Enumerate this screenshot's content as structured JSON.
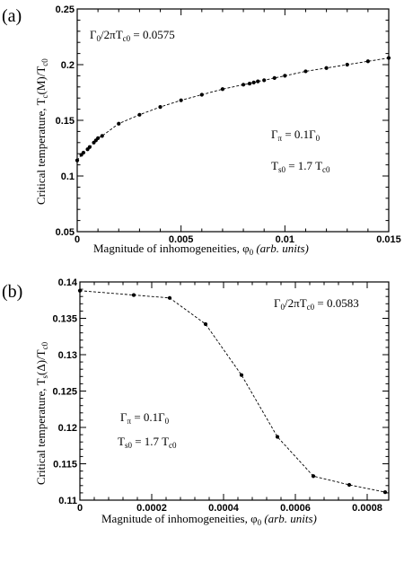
{
  "chart_data": [
    {
      "panel_label": "(a)",
      "type": "line",
      "xlabel": "Magnitude of inhomogeneities, φ",
      "xlabel_sub": "0",
      "xlabel_italic": "(arb. units)",
      "ylabel": "Critical temperature, T",
      "ylabel_sub1": "c",
      "ylabel_mid": "(M)/T",
      "ylabel_sub2": "c0",
      "xlim": [
        0,
        0.015
      ],
      "ylim": [
        0.05,
        0.25
      ],
      "xticks": [
        0,
        0.005,
        0.01,
        0.015
      ],
      "xtick_labels": [
        "0",
        "0.005",
        "0.01",
        "0.015"
      ],
      "yticks": [
        0.05,
        0.1,
        0.15,
        0.2,
        0.25
      ],
      "ytick_labels": [
        "0.05",
        "0.1",
        "0.15",
        "0.2",
        "0.25"
      ],
      "annotations": {
        "gamma_ratio": {
          "main": "Γ",
          "sub": "0",
          "rest": "/2πT",
          "sub2": "c0",
          "value": " = 0.0575"
        },
        "gamma_pi": {
          "main": "Γ",
          "sub": "π",
          "rest": " = 0.1Γ",
          "sub2": "0"
        },
        "ts0": {
          "main": "T",
          "sub": "s0",
          "rest": " = 1.7 T",
          "sub2": "c0"
        }
      },
      "x": [
        0.0,
        0.0002,
        0.0003,
        0.0005,
        0.0006,
        0.0008,
        0.0009,
        0.001,
        0.0012,
        0.002,
        0.003,
        0.004,
        0.005,
        0.006,
        0.007,
        0.008,
        0.0083,
        0.0085,
        0.0087,
        0.009,
        0.0095,
        0.01,
        0.011,
        0.012,
        0.013,
        0.014,
        0.015
      ],
      "y": [
        0.114,
        0.119,
        0.121,
        0.124,
        0.126,
        0.13,
        0.132,
        0.134,
        0.136,
        0.147,
        0.155,
        0.162,
        0.168,
        0.173,
        0.178,
        0.182,
        0.183,
        0.184,
        0.185,
        0.186,
        0.188,
        0.19,
        0.194,
        0.197,
        0.2,
        0.203,
        0.206
      ]
    },
    {
      "panel_label": "(b)",
      "type": "line",
      "xlabel": "Magnitude of inhomogeneities, φ",
      "xlabel_sub": "0",
      "xlabel_italic": "(arb. units)",
      "ylabel": "Critical temperature, T",
      "ylabel_sub1": "s",
      "ylabel_mid": "(Δ)/T",
      "ylabel_sub2": "c0",
      "xlim": [
        0,
        0.00086
      ],
      "ylim": [
        0.11,
        0.14
      ],
      "xticks": [
        0,
        0.0002,
        0.0004,
        0.0006,
        0.0008
      ],
      "xtick_labels": [
        "0",
        "0.0002",
        "0.0004",
        "0.0006",
        "0.0008"
      ],
      "yticks": [
        0.11,
        0.115,
        0.12,
        0.125,
        0.13,
        0.135,
        0.14
      ],
      "ytick_labels": [
        "0.11",
        "0.115",
        "0.12",
        "0.125",
        "0.13",
        "0.135",
        "0.14"
      ],
      "annotations": {
        "gamma_ratio": {
          "main": "Γ",
          "sub": "0",
          "rest": "/2πT",
          "sub2": "c0",
          "value": " = 0.0583"
        },
        "gamma_pi": {
          "main": "Γ",
          "sub": "π",
          "rest": " = 0.1Γ",
          "sub2": "0"
        },
        "ts0": {
          "main": "T",
          "sub": "s0",
          "rest": " = 1.7 T",
          "sub2": "c0"
        }
      },
      "x": [
        0.0,
        0.00015,
        0.00025,
        0.00035,
        0.00045,
        0.00055,
        0.00065,
        0.00075,
        0.00085
      ],
      "y": [
        0.1388,
        0.1382,
        0.1378,
        0.1342,
        0.1272,
        0.1187,
        0.1133,
        0.1121,
        0.1111
      ]
    }
  ]
}
